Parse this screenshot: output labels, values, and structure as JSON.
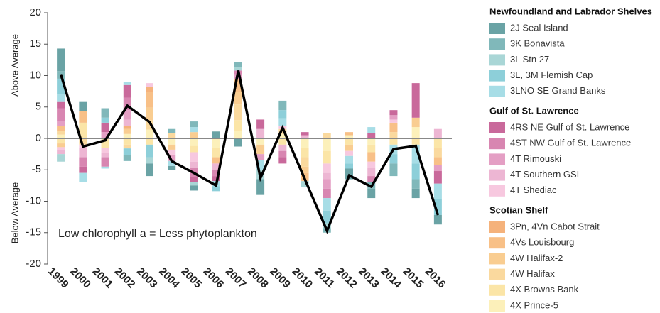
{
  "chart_data": {
    "type": "bar",
    "categories": [
      "1999",
      "2000",
      "2001",
      "2002",
      "2003",
      "2004",
      "2005",
      "2006",
      "2007",
      "2008",
      "2009",
      "2010",
      "2011",
      "2012",
      "2013",
      "2014",
      "2015",
      "2016"
    ],
    "ylim": [
      -20,
      20
    ],
    "yticks": [
      -20,
      -15,
      -10,
      -5,
      0,
      5,
      10,
      15,
      20
    ],
    "ylabels": [
      "Above Average",
      "Below Average"
    ],
    "annotation": "Low chlorophyll a = Less phytoplankton",
    "groups": [
      {
        "title": "Newfoundland and Labrador Shelves",
        "series": [
          {
            "name": "2J Seal Island",
            "color": "#6aa3a5",
            "values": [
              3.6,
              1.5,
              0,
              0,
              -2,
              -0.6,
              -0.8,
              1.1,
              -1.3,
              -2.5,
              0,
              0,
              0,
              -1.7,
              -1.5,
              0,
              -1.5,
              -1.5
            ]
          },
          {
            "name": "3K Bonavista",
            "color": "#80b8ba",
            "values": [
              1.2,
              0,
              1.5,
              -1,
              0,
              0.7,
              0.9,
              0,
              0.8,
              0,
              1.5,
              0,
              -0.7,
              0,
              -1,
              -2,
              -1.5,
              0
            ]
          },
          {
            "name": "3L Stn 27",
            "color": "#a9d6d6",
            "values": [
              -1.2,
              0,
              0,
              0,
              -1,
              0,
              -0.5,
              0,
              0.6,
              -1.5,
              0,
              -1,
              -0.8,
              0,
              0,
              0,
              0,
              0
            ]
          },
          {
            "name": "3L, 3M Flemish Cap",
            "color": "#8dcfd9",
            "values": [
              2.5,
              0,
              0.8,
              -1,
              -2,
              0,
              0,
              -0.8,
              0,
              0,
              1.3,
              0,
              -2,
              -0.8,
              0,
              -1.5,
              -2.5,
              -2.5
            ]
          },
          {
            "name": "3LNO SE Grand Banks",
            "color": "#a7dde6",
            "values": [
              1.2,
              -1.5,
              -0.3,
              0.5,
              0,
              -0.8,
              0.8,
              -0.8,
              0,
              -1.5,
              1.2,
              0,
              -2,
              -1.2,
              1,
              -1.5,
              -3,
              -2.5
            ]
          }
        ]
      },
      {
        "title": "Gulf of St. Lawrence",
        "series": [
          {
            "name": "4RS NE Gulf of St. Lawrence",
            "color": "#c9699b",
            "values": [
              1,
              -1,
              1.5,
              2,
              0,
              0,
              -0.8,
              -0.8,
              0,
              1.5,
              -1,
              0.5,
              0,
              0,
              0.8,
              0.8,
              5.5,
              -2
            ]
          },
          {
            "name": "4ST NW Gulf of St. Lawrence",
            "color": "#d886b1",
            "values": [
              2,
              -1.5,
              -1.5,
              2,
              0,
              0,
              -1.5,
              -1,
              0.6,
              0,
              -1,
              0,
              -1.5,
              0,
              -1,
              0,
              0,
              0
            ]
          },
          {
            "name": "4T Rimouski",
            "color": "#e49fc4",
            "values": [
              0.8,
              0,
              1,
              1.5,
              0,
              -1,
              0,
              0,
              0.8,
              -1,
              0,
              0,
              -1.5,
              0,
              0,
              0.7,
              0,
              -1
            ]
          },
          {
            "name": "4T Southern GSL",
            "color": "#edb6d3",
            "values": [
              -0.6,
              -1.5,
              -0.7,
              1,
              0,
              0,
              -1,
              -1,
              0,
              1.5,
              -1,
              0.5,
              -1,
              0,
              -1.3,
              0,
              0,
              1.5
            ]
          },
          {
            "name": "4T Shediac",
            "color": "#f7c8df",
            "values": [
              -0.5,
              -0.5,
              -0.8,
              0,
              0.6,
              -0.8,
              -1.5,
              0,
              0,
              0,
              0.5,
              0,
              -1.5,
              -0.8,
              -1,
              0.5,
              0,
              0
            ]
          }
        ]
      },
      {
        "title": "Scotian Shelf",
        "series": [
          {
            "name": "3Pn, 4Vn Cabot Strait",
            "color": "#f5b27b",
            "values": [
              0,
              0,
              0,
              0.5,
              0.8,
              0,
              0,
              0,
              0,
              0,
              0,
              0,
              0,
              0,
              0,
              0,
              0,
              0
            ]
          },
          {
            "name": "4Vs Louisbourg",
            "color": "#f8c087",
            "values": [
              0.8,
              1.8,
              0,
              0,
              2.5,
              0,
              0,
              -1,
              2,
              0,
              0,
              -1.3,
              0,
              0.5,
              -1.5,
              1.5,
              0,
              -1.2
            ]
          },
          {
            "name": "4W Halifax-2",
            "color": "#f9cd91",
            "values": [
              -0.6,
              0,
              0,
              0.8,
              2,
              -0.8,
              1,
              0,
              2,
              -1.5,
              0,
              -1,
              0,
              -1,
              0,
              0,
              1.5,
              0
            ]
          },
          {
            "name": "4W Halifax",
            "color": "#fad99e",
            "values": [
              0.6,
              -1,
              0,
              -0.6,
              1.5,
              0.8,
              0,
              0,
              2.5,
              0,
              0.8,
              -1.5,
              0.8,
              0,
              0,
              1,
              0,
              -1.5
            ]
          },
          {
            "name": "4X Browns Bank",
            "color": "#fbe5a7",
            "values": [
              -0.8,
              2.5,
              -1.5,
              -1,
              -1,
              0,
              -1,
              -1.5,
              1.7,
              0,
              -1,
              -1.5,
              -2,
              -1,
              -1.2,
              -1,
              -1,
              -1.5
            ]
          },
          {
            "name": "4X Prince-5",
            "color": "#fcf0ba",
            "values": [
              0.6,
              0,
              0,
              0.7,
              1.4,
              -1,
              -1.2,
              -1.5,
              1.2,
              -1,
              0.7,
              -1.5,
              -2,
              0.5,
              -1,
              0,
              1.8,
              0
            ]
          }
        ]
      }
    ],
    "line": {
      "color": "#000000",
      "values": [
        10.2,
        -1.3,
        -0.3,
        5.2,
        2.6,
        -3.6,
        -5.5,
        -7.5,
        10.8,
        -6.3,
        1.7,
        -6.5,
        -14.7,
        -5.9,
        -7.7,
        -1.7,
        -1.2,
        -12.2
      ]
    }
  }
}
